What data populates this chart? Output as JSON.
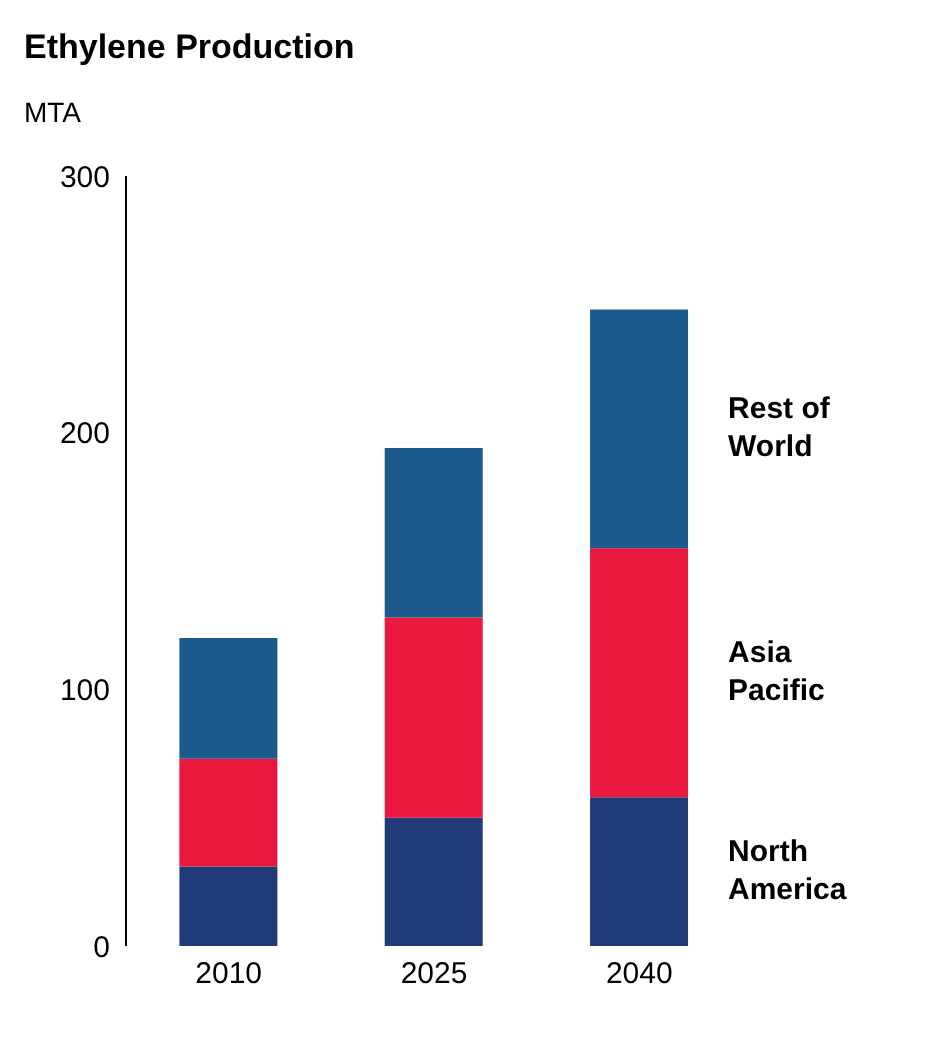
{
  "chart_data": {
    "type": "bar",
    "title": "Ethylene Production",
    "ylabel": "MTA",
    "categories": [
      "2010",
      "2025",
      "2040"
    ],
    "stacked": true,
    "legend": false,
    "grid": false,
    "ylim": [
      0,
      300
    ],
    "yticks": [
      0,
      100,
      200,
      300
    ],
    "series": [
      {
        "name": "North America",
        "color": "#1f3b78",
        "values": [
          31,
          50,
          58
        ]
      },
      {
        "name": "Asia Pacific",
        "color": "#e8183e",
        "values": [
          42,
          78,
          97
        ]
      },
      {
        "name": "Rest of World",
        "color": "#1d5a8c",
        "values": [
          47,
          66,
          93
        ]
      }
    ]
  }
}
